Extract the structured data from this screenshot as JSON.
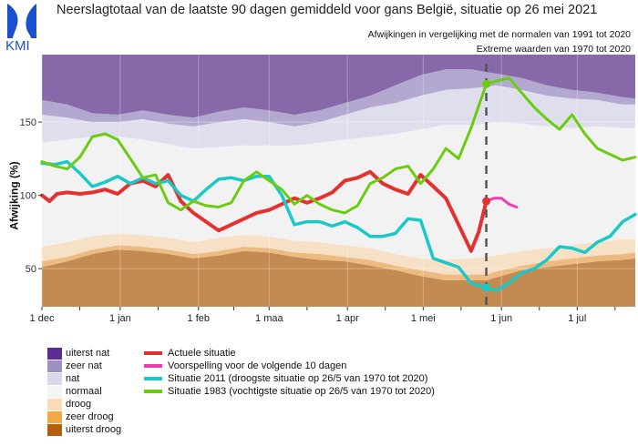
{
  "header": {
    "logo_text": "KMI",
    "title": "Neerslagtotaal van de laatste 90 dagen gemiddeld voor gans België, situatie op 26 mei 2021",
    "subtitle_normals": "Afwijkingen in vergelijking met de normalen van 1991 tot 2020",
    "subtitle_extremes": "Extreme waarden van 1970 tot 2020"
  },
  "chart_data": {
    "type": "line",
    "title": "Neerslagtotaal van de laatste 90 dagen gemiddeld voor gans België, situatie op 26 mei 2021",
    "xlabel": "",
    "ylabel": "Afwijking (%)",
    "x_unit": "days since 1 dec",
    "xlim": [
      0,
      235
    ],
    "ylim": [
      24,
      196
    ],
    "x_ticks": [
      {
        "day": 0,
        "label": "1 dec"
      },
      {
        "day": 31,
        "label": "1 jan"
      },
      {
        "day": 62,
        "label": "1 feb"
      },
      {
        "day": 90,
        "label": "1 maa"
      },
      {
        "day": 121,
        "label": "1 apr"
      },
      {
        "day": 151,
        "label": "1 mei"
      },
      {
        "day": 182,
        "label": "1 jun"
      },
      {
        "day": 212,
        "label": "1 jul"
      }
    ],
    "y_ticks": [
      50,
      100,
      150
    ],
    "grid": true,
    "current_day": 176,
    "bands": {
      "x": [
        0,
        10,
        20,
        30,
        40,
        50,
        60,
        70,
        80,
        90,
        100,
        110,
        120,
        130,
        140,
        150,
        160,
        170,
        176,
        180,
        190,
        200,
        210,
        220,
        230,
        235
      ],
      "boundaries": [
        {
          "name": "uiterst droog top",
          "values": [
            51,
            55,
            60,
            63,
            62,
            60,
            57,
            59,
            62,
            61,
            58,
            56,
            55,
            52,
            49,
            45,
            42,
            42,
            42,
            44,
            49,
            51,
            53,
            55,
            56,
            57
          ]
        },
        {
          "name": "zeer droog top",
          "values": [
            55,
            58,
            63,
            66,
            65,
            63,
            60,
            62,
            65,
            64,
            61,
            60,
            58,
            56,
            52,
            49,
            46,
            46,
            46,
            48,
            52,
            55,
            57,
            59,
            60,
            61
          ]
        },
        {
          "name": "droog top",
          "values": [
            65,
            68,
            72,
            74,
            73,
            71,
            68,
            71,
            73,
            72,
            69,
            68,
            66,
            64,
            60,
            57,
            56,
            57,
            58,
            59,
            62,
            64,
            66,
            68,
            70,
            70
          ]
        },
        {
          "name": "normaal top",
          "values": [
            136,
            138,
            140,
            140,
            138,
            135,
            132,
            133,
            134,
            134,
            134,
            136,
            138,
            140,
            142,
            145,
            148,
            148,
            149,
            150,
            149,
            147,
            146,
            147,
            146,
            146
          ]
        },
        {
          "name": "nat top",
          "values": [
            155,
            153,
            150,
            150,
            152,
            149,
            147,
            150,
            152,
            150,
            147,
            150,
            155,
            160,
            163,
            168,
            172,
            173,
            174,
            175,
            172,
            168,
            166,
            165,
            162,
            162
          ]
        },
        {
          "name": "zeer nat top",
          "values": [
            165,
            162,
            156,
            155,
            158,
            155,
            153,
            157,
            160,
            158,
            155,
            158,
            163,
            168,
            175,
            182,
            186,
            186,
            184,
            183,
            180,
            175,
            172,
            170,
            167,
            166
          ]
        }
      ]
    },
    "series": [
      {
        "name": "Actuele situatie",
        "color": "#e53030",
        "x": [
          0,
          3,
          6,
          10,
          15,
          20,
          25,
          30,
          35,
          40,
          45,
          50,
          55,
          60,
          65,
          70,
          75,
          80,
          85,
          90,
          95,
          100,
          105,
          110,
          115,
          120,
          125,
          130,
          135,
          140,
          145,
          150,
          155,
          160,
          165,
          170,
          173,
          176
        ],
        "values": [
          100,
          96,
          101,
          102,
          101,
          102,
          104,
          101,
          108,
          110,
          106,
          114,
          96,
          88,
          82,
          76,
          80,
          84,
          88,
          90,
          94,
          98,
          95,
          98,
          102,
          110,
          112,
          116,
          108,
          104,
          101,
          114,
          106,
          98,
          80,
          62,
          75,
          96
        ]
      },
      {
        "name": "Voorspelling voor de volgende 10 dagen",
        "color": "#f03cb4",
        "x": [
          176,
          179,
          182,
          185,
          188
        ],
        "values": [
          96,
          98,
          98,
          94,
          92
        ]
      },
      {
        "name": "Situatie 2011 (droogste situatie op 26/5 van 1970 tot 2020)",
        "color": "#1ac8c8",
        "x": [
          0,
          5,
          10,
          15,
          20,
          25,
          30,
          35,
          40,
          45,
          50,
          55,
          60,
          65,
          70,
          75,
          80,
          85,
          90,
          95,
          100,
          105,
          110,
          115,
          120,
          125,
          130,
          135,
          140,
          145,
          150,
          155,
          160,
          165,
          170,
          176,
          180,
          185,
          190,
          195,
          200,
          205,
          210,
          215,
          220,
          225,
          230,
          235
        ],
        "values": [
          122,
          121,
          123,
          115,
          106,
          109,
          113,
          108,
          112,
          108,
          110,
          100,
          96,
          104,
          111,
          112,
          110,
          113,
          113,
          100,
          80,
          82,
          82,
          79,
          82,
          78,
          72,
          72,
          74,
          84,
          83,
          57,
          54,
          51,
          40,
          37,
          35,
          40,
          47,
          50,
          56,
          65,
          64,
          61,
          68,
          72,
          82,
          87
        ]
      },
      {
        "name": "Situatie 1983 (vochtigste situatie op 26/5 van 1970 tot 2020)",
        "color": "#6ccc10",
        "x": [
          0,
          5,
          10,
          15,
          20,
          25,
          30,
          35,
          40,
          45,
          50,
          55,
          60,
          65,
          70,
          75,
          80,
          85,
          90,
          95,
          100,
          105,
          110,
          115,
          120,
          125,
          130,
          135,
          140,
          145,
          150,
          155,
          160,
          165,
          170,
          176,
          180,
          185,
          190,
          195,
          200,
          205,
          210,
          215,
          220,
          225,
          230,
          235
        ],
        "values": [
          123,
          120,
          118,
          126,
          140,
          142,
          138,
          125,
          112,
          114,
          95,
          90,
          96,
          93,
          92,
          95,
          110,
          116,
          110,
          104,
          94,
          100,
          94,
          90,
          88,
          93,
          108,
          112,
          118,
          120,
          108,
          118,
          132,
          125,
          146,
          176,
          178,
          180,
          170,
          160,
          152,
          145,
          155,
          142,
          132,
          128,
          124,
          126
        ]
      }
    ],
    "legend": {
      "bands": [
        {
          "label": "uiterst nat",
          "color": "#5b2d90"
        },
        {
          "label": "zeer nat",
          "color": "#9b8fc4"
        },
        {
          "label": "nat",
          "color": "#d9d8eb"
        },
        {
          "label": "normaal",
          "color": "#f5f5f5"
        },
        {
          "label": "droog",
          "color": "#fcdcb6"
        },
        {
          "label": "zeer droog",
          "color": "#f0a848"
        },
        {
          "label": "uiterst droog",
          "color": "#b45f0e"
        }
      ],
      "placement": "bottom-left"
    }
  },
  "band_fill_colors": {
    "uiterst_nat": "#8768a9",
    "zeer_nat": "#b2a8d0",
    "nat": "#dfdeec",
    "normaal": "#f2f2f2",
    "droog": "#f6e0c6",
    "zeer_droog": "#edbb82",
    "uiterst_droog": "#c38a52"
  }
}
